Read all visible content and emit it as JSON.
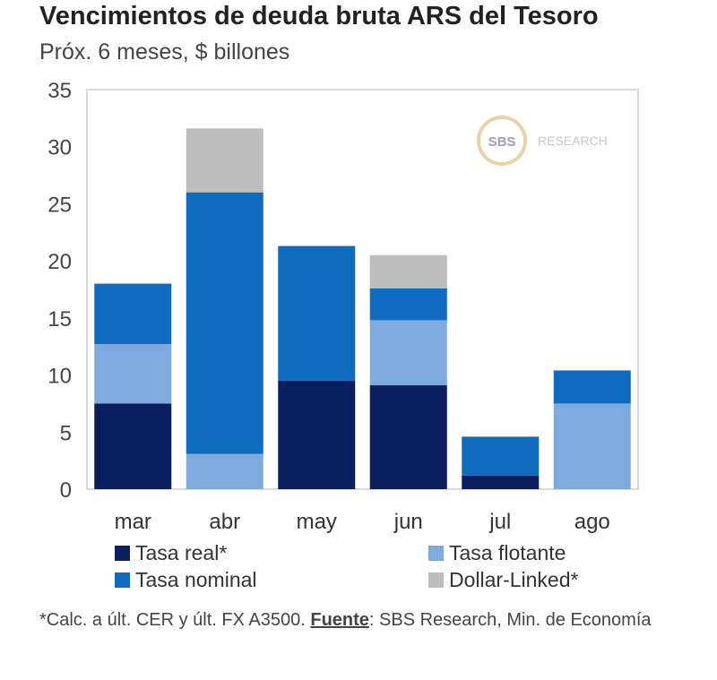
{
  "chart_data": {
    "type": "bar",
    "stacked": true,
    "title": "Vencimientos de deuda bruta ARS del Tesoro",
    "subtitle": "Próx. 6 meses, $ billones",
    "categories": [
      "mar",
      "abr",
      "may",
      "jun",
      "jul",
      "ago"
    ],
    "ylim": [
      0,
      35
    ],
    "yticks": [
      0,
      5,
      10,
      15,
      20,
      25,
      30,
      35
    ],
    "series": [
      {
        "name": "Tasa real*",
        "color": "#0b1f5e",
        "values": [
          7.5,
          0,
          9.5,
          9.1,
          1.2,
          0
        ]
      },
      {
        "name": "Tasa flotante",
        "color": "#7eaae0",
        "values": [
          5.2,
          3.1,
          0,
          5.7,
          0,
          7.5
        ]
      },
      {
        "name": "Tasa nominal",
        "color": "#0e6bbd",
        "values": [
          5.3,
          22.9,
          11.8,
          2.8,
          3.4,
          2.9
        ]
      },
      {
        "name": "Dollar-Linked*",
        "color": "#bdbdbd",
        "values": [
          0,
          5.6,
          0,
          2.9,
          0,
          0
        ]
      }
    ],
    "watermark": {
      "logo": "SBS",
      "text": "RESEARCH"
    }
  },
  "footer": {
    "note": "*Calc. a últ. CER y últ. FX A3500. ",
    "source_label": "Fuente",
    "source_text": ": SBS Research, Min. de Economía"
  }
}
